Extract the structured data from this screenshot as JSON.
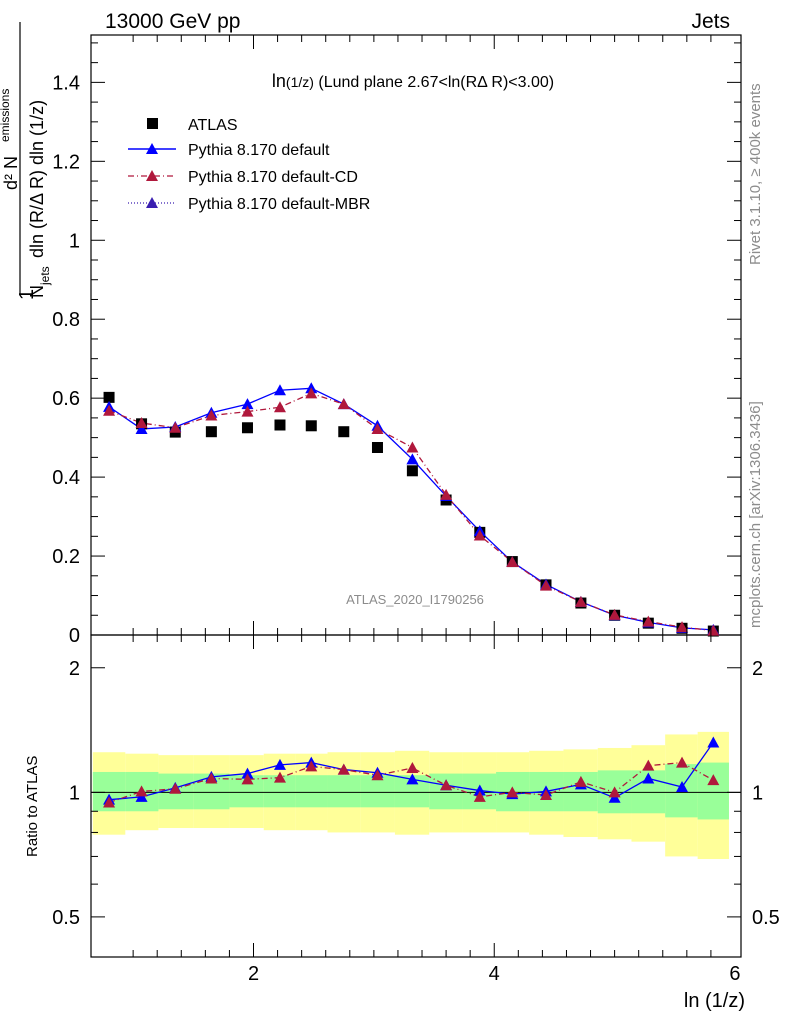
{
  "header": {
    "left": "13000 GeV pp",
    "right": "Jets"
  },
  "side": {
    "rivet": "Rivet 3.1.10, ≥ 400k events",
    "mcplots": "mcplots.cern.ch [arXiv:1306.3436]"
  },
  "chart_data": {
    "type": "scatter",
    "title": "ln(1/z) (Lund plane 2.67<ln(RΔ R)<3.00)",
    "title_parts": [
      "ln",
      "(1/z)",
      " (Lund plane 2.67<ln(RΔ R)<3.00)"
    ],
    "analysis_label": "ATLAS_2020_I1790256",
    "xlabel": "ln (1/z)",
    "ylabel_lines": [
      "1",
      "d² N",
      "emissions",
      "N",
      "jets",
      "dln (R/Δ R) dln (1/z)"
    ],
    "ratio_ylabel": "Ratio to ATLAS",
    "xlim": [
      0.65,
      6.05
    ],
    "ylim": [
      0,
      1.52
    ],
    "ratio_ylim": [
      0.4,
      2.4
    ],
    "x_ticks": [
      2,
      4,
      6
    ],
    "y_ticks": [
      0,
      0.2,
      0.4,
      0.6,
      0.8,
      1,
      1.2,
      1.4
    ],
    "y_tick_labels": [
      "0",
      "0.2",
      "0.4",
      "0.6",
      "0.8",
      "1",
      "1.2",
      "1.4"
    ],
    "ratio_ticks": [
      0.5,
      1,
      2
    ],
    "ratio_tick_labels": [
      "0.5",
      "1",
      "2"
    ],
    "x": [
      0.8,
      1.07,
      1.35,
      1.65,
      1.95,
      2.22,
      2.48,
      2.75,
      3.03,
      3.32,
      3.6,
      3.88,
      4.15,
      4.43,
      4.72,
      5.0,
      5.28,
      5.56,
      5.82
    ],
    "series": [
      {
        "name": "ATLAS",
        "marker": "square",
        "color": "#000000",
        "values": [
          0.602,
          0.535,
          0.514,
          0.515,
          0.525,
          0.532,
          0.53,
          0.515,
          0.475,
          0.416,
          0.342,
          0.26,
          0.186,
          0.127,
          0.081,
          0.05,
          0.03,
          0.017,
          0.01
        ]
      },
      {
        "name": "Pythia 8.170 default",
        "marker": "triangle",
        "color": "#0000ff",
        "line": "solid",
        "values": [
          0.578,
          0.522,
          0.527,
          0.563,
          0.585,
          0.62,
          0.625,
          0.585,
          0.53,
          0.445,
          0.352,
          0.263,
          0.185,
          0.128,
          0.084,
          0.05,
          0.032,
          0.018,
          0.013
        ],
        "ratio": [
          0.96,
          0.975,
          1.025,
          1.09,
          1.11,
          1.165,
          1.18,
          1.135,
          1.115,
          1.075,
          1.04,
          1.01,
          0.99,
          1.005,
          1.045,
          0.97,
          1.08,
          1.03,
          1.32
        ]
      },
      {
        "name": "Pythia 8.170 default-CD",
        "marker": "triangle",
        "color": "#b0183c",
        "line": "dashdot",
        "values": [
          0.568,
          0.537,
          0.525,
          0.556,
          0.566,
          0.577,
          0.612,
          0.585,
          0.522,
          0.475,
          0.355,
          0.252,
          0.185,
          0.125,
          0.084,
          0.051,
          0.034,
          0.02,
          0.011
        ],
        "ratio": [
          0.945,
          1.005,
          1.02,
          1.08,
          1.075,
          1.085,
          1.155,
          1.135,
          1.1,
          1.145,
          1.04,
          0.975,
          1.0,
          0.985,
          1.06,
          1.0,
          1.16,
          1.18,
          1.07
        ]
      },
      {
        "name": "Pythia 8.170 default-MBR",
        "marker": "triangle",
        "color": "#3a1fb0",
        "line": "dotted",
        "values": [],
        "ratio": []
      }
    ],
    "ratio_band_inner": [
      0.9,
      0.9,
      0.91,
      0.91,
      0.92,
      0.92,
      0.92,
      0.92,
      0.92,
      0.92,
      0.91,
      0.91,
      0.9,
      0.9,
      0.9,
      0.89,
      0.89,
      0.87,
      0.86
    ],
    "ratio_band_inner_hi": [
      1.12,
      1.12,
      1.11,
      1.11,
      1.1,
      1.1,
      1.1,
      1.1,
      1.1,
      1.1,
      1.11,
      1.11,
      1.12,
      1.12,
      1.12,
      1.13,
      1.13,
      1.17,
      1.18
    ],
    "ratio_band_outer_lo": [
      0.79,
      0.81,
      0.82,
      0.82,
      0.82,
      0.81,
      0.81,
      0.8,
      0.8,
      0.79,
      0.8,
      0.8,
      0.8,
      0.79,
      0.78,
      0.77,
      0.76,
      0.7,
      0.69
    ],
    "ratio_band_outer_hi": [
      1.25,
      1.24,
      1.23,
      1.23,
      1.23,
      1.24,
      1.24,
      1.25,
      1.25,
      1.26,
      1.25,
      1.25,
      1.25,
      1.26,
      1.27,
      1.28,
      1.3,
      1.38,
      1.4
    ],
    "legend_position": "top-left",
    "colors": {
      "band_inner": "#99ff99",
      "band_outer": "#ffff99"
    }
  }
}
